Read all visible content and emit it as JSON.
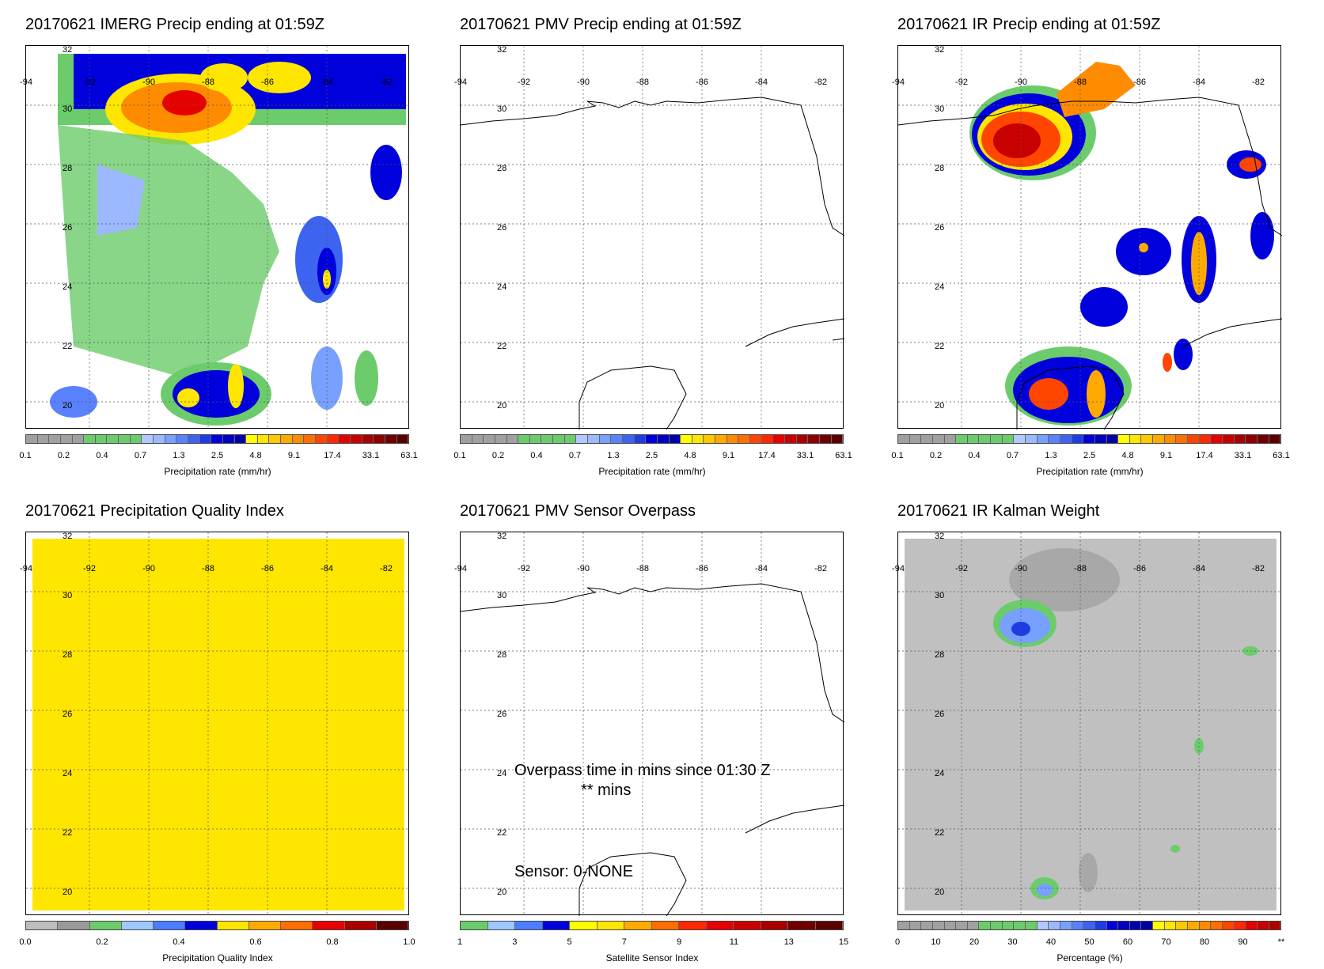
{
  "panels": [
    {
      "title": "20170621 IMERG Precip ending at 01:59Z",
      "colorbar_title": "Precipitation rate (mm/hr)",
      "ticks": [
        "0.1",
        "0.2",
        "0.4",
        "0.7",
        "1.3",
        "2.5",
        "4.8",
        "9.1",
        "17.4",
        "33.1",
        "63.1"
      ]
    },
    {
      "title": "20170621 PMV Precip ending at 01:59Z",
      "colorbar_title": "Precipitation rate (mm/hr)",
      "ticks": [
        "0.1",
        "0.2",
        "0.4",
        "0.7",
        "1.3",
        "2.5",
        "4.8",
        "9.1",
        "17.4",
        "33.1",
        "63.1"
      ]
    },
    {
      "title": "20170621 IR Precip ending at 01:59Z",
      "colorbar_title": "Precipitation rate (mm/hr)",
      "ticks": [
        "0.1",
        "0.2",
        "0.4",
        "0.7",
        "1.3",
        "2.5",
        "4.8",
        "9.1",
        "17.4",
        "33.1",
        "63.1"
      ]
    },
    {
      "title": "20170621 Precipitation Quality Index",
      "colorbar_title": "Precipitation Quality Index",
      "ticks": [
        "0.0",
        "0.2",
        "0.4",
        "0.6",
        "0.8",
        "1.0"
      ]
    },
    {
      "title": "20170621 PMV Sensor Overpass",
      "colorbar_title": "Satellite Sensor Index",
      "ticks": [
        "1",
        "3",
        "5",
        "7",
        "9",
        "11",
        "13",
        "15"
      ],
      "overpass_line1": "Overpass time in mins since 01:30 Z",
      "overpass_line2": "** mins",
      "sensor_label": "Sensor:   0-NONE"
    },
    {
      "title": "20170621 IR Kalman Weight",
      "colorbar_title": "Percentage (%)",
      "ticks": [
        "0",
        "10",
        "20",
        "30",
        "40",
        "50",
        "60",
        "70",
        "80",
        "90",
        "**"
      ]
    }
  ],
  "lat_labels": [
    "32",
    "30",
    "28",
    "26",
    "24",
    "22",
    "20"
  ],
  "lon_labels": [
    "-94",
    "-92",
    "-90",
    "-88",
    "-86",
    "-84",
    "-82"
  ],
  "colors": {
    "precip_scale": [
      "#a0a0a0",
      "#a0a0a0",
      "#a0a0a0",
      "#a0a0a0",
      "#a0a0a0",
      "#6ccc6c",
      "#6ccc6c",
      "#6ccc6c",
      "#6ccc6c",
      "#6ccc6c",
      "#b4c8ff",
      "#9cb8ff",
      "#78a0ff",
      "#5a82ff",
      "#3c64f0",
      "#1e3ce6",
      "#0000dc",
      "#0000c0",
      "#0000aa",
      "#ffff00",
      "#ffe600",
      "#ffc800",
      "#ffaa00",
      "#ff8c00",
      "#ff6e00",
      "#ff4600",
      "#ff2800",
      "#e60000",
      "#c80000",
      "#aa0000",
      "#8c0000",
      "#700000",
      "#5a0000"
    ],
    "quality_scale": [
      "#bdbdbd",
      "#999999",
      "#6ccc6c",
      "#9ec8ff",
      "#4a7dff",
      "#0000dc",
      "#ffe600",
      "#ffaa00",
      "#ff6e00",
      "#e60000",
      "#aa0000",
      "#5a0000"
    ],
    "sensor_scale": [
      "#6ccc6c",
      "#9ec8ff",
      "#4a7dff",
      "#0000dc",
      "#ffff00",
      "#ffe600",
      "#ffaa00",
      "#ff6e00",
      "#ff2800",
      "#e60000",
      "#c80000",
      "#aa0000",
      "#700000",
      "#5a0000"
    ],
    "kalman_scale": [
      "#a0a0a0",
      "#a0a0a0",
      "#a0a0a0",
      "#a0a0a0",
      "#a0a0a0",
      "#a0a0a0",
      "#a0a0a0",
      "#6ccc6c",
      "#6ccc6c",
      "#6ccc6c",
      "#6ccc6c",
      "#6ccc6c",
      "#b4c8ff",
      "#9cb8ff",
      "#78a0ff",
      "#5a82ff",
      "#3c64f0",
      "#1e3ce6",
      "#0000dc",
      "#0000c0",
      "#0000aa",
      "#0000a0",
      "#ffff00",
      "#ffe600",
      "#ffc800",
      "#ffaa00",
      "#ff8c00",
      "#ff6e00",
      "#ff4600",
      "#ff2800",
      "#e60000",
      "#c80000",
      "#aa0000"
    ],
    "quality_fill": "#ffe600",
    "kalman_fill": "#c0c0c0"
  }
}
